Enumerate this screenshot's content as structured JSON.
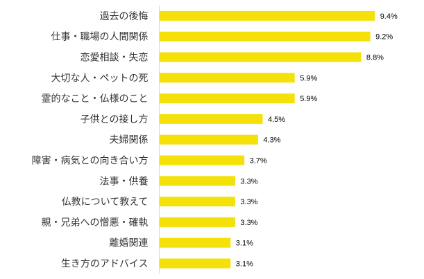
{
  "chart_data": {
    "type": "bar",
    "orientation": "horizontal",
    "categories": [
      "過去の後悔",
      "仕事・職場の人間関係",
      "恋愛相談・失恋",
      "大切な人・ペットの死",
      "霊的なこと・仏様のこと",
      "子供との接し方",
      "夫婦関係",
      "障害・病気との向き合い方",
      "法事・供養",
      "仏教について教えて",
      "親・兄弟への憎悪・確執",
      "離婚関連",
      "生き方のアドバイス"
    ],
    "values": [
      9.4,
      9.2,
      8.8,
      5.9,
      5.9,
      4.5,
      4.3,
      3.7,
      3.3,
      3.3,
      3.3,
      3.1,
      3.1
    ],
    "value_labels": [
      "9.4%",
      "9.2%",
      "8.8%",
      "5.9%",
      "5.9%",
      "4.5%",
      "4.3%",
      "3.7%",
      "3.3%",
      "3.3%",
      "3.3%",
      "3.1%",
      "3.1%"
    ],
    "unit": "%",
    "title": "",
    "xlabel": "",
    "ylabel": "",
    "xlim": [
      0,
      10
    ],
    "grid": false,
    "legend": "none",
    "bar_color": "#f5e10a",
    "axis_color": "#d9d9d9"
  }
}
